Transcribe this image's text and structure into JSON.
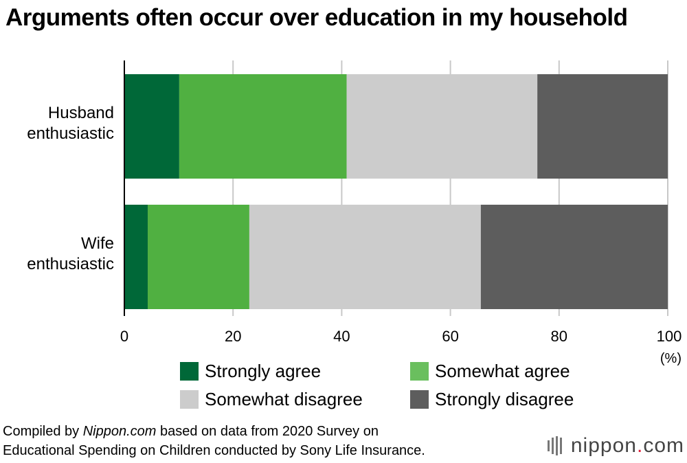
{
  "title": "Arguments often occur over education in my household",
  "unit_label": "(%)",
  "source": {
    "prefix": "Compiled by ",
    "publisher": "Nippon.com",
    "line1_rest": " based on data from 2020 Survey on",
    "line2": "Educational Spending on Children conducted by Sony Life Insurance."
  },
  "logo": {
    "name": "nippon",
    "dot": ".",
    "suffix": "com"
  },
  "colors": {
    "strongly_agree": "#006838",
    "somewhat_agree": "#50b041",
    "somewhat_disagree": "#cccccc",
    "strongly_disagree": "#5d5d5d",
    "grid": "#c8c8c8"
  },
  "categories": [
    {
      "lines": [
        "Husband",
        "enthusiastic"
      ]
    },
    {
      "lines": [
        "Wife",
        "enthusiastic"
      ]
    }
  ],
  "legend": [
    {
      "label": "Strongly agree",
      "color": "#006838"
    },
    {
      "label": "Somewhat agree",
      "color": "#6abf5e"
    },
    {
      "label": "Somewhat disagree",
      "color": "#cccccc"
    },
    {
      "label": "Strongly disagree",
      "color": "#5d5d5d"
    }
  ],
  "chart_data": {
    "type": "bar",
    "orientation": "horizontal",
    "stacked": true,
    "categories": [
      "Husband enthusiastic",
      "Wife enthusiastic"
    ],
    "series": [
      {
        "name": "Strongly agree",
        "values": [
          10.1,
          4.3
        ]
      },
      {
        "name": "Somewhat agree",
        "values": [
          30.8,
          18.7
        ]
      },
      {
        "name": "Somewhat disagree",
        "values": [
          35.1,
          42.6
        ]
      },
      {
        "name": "Strongly disagree",
        "values": [
          24.0,
          34.4
        ]
      }
    ],
    "xlim": [
      0,
      100
    ],
    "xticks": [
      "0",
      "20",
      "40",
      "60",
      "80",
      "100"
    ],
    "grid": true,
    "legend_position": "bottom"
  }
}
